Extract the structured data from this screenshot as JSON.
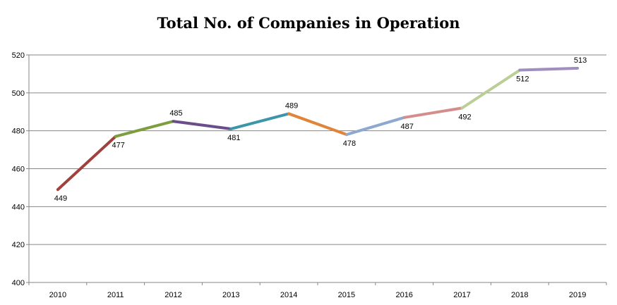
{
  "chart_data": {
    "type": "line",
    "title": "Total No. of Companies in Operation",
    "xlabel": "",
    "ylabel": "",
    "categories": [
      "2010",
      "2011",
      "2012",
      "2013",
      "2014",
      "2015",
      "2016",
      "2017",
      "2018",
      "2019"
    ],
    "values": [
      449,
      477,
      485,
      481,
      489,
      478,
      487,
      492,
      512,
      513
    ],
    "ylim": [
      400,
      520
    ],
    "yticks": [
      400,
      420,
      440,
      460,
      480,
      500,
      520
    ],
    "grid": true,
    "legend": "none",
    "data_label_positions": [
      "below",
      "below",
      "above",
      "below",
      "above",
      "below",
      "below",
      "below",
      "below",
      "above"
    ],
    "segment_colors": [
      "#A0413D",
      "#7E9D3E",
      "#6A4E8C",
      "#3C95A8",
      "#E0843A",
      "#8EA8CF",
      "#D38D8B",
      "#B9CF95",
      "#9F8EBE"
    ]
  }
}
